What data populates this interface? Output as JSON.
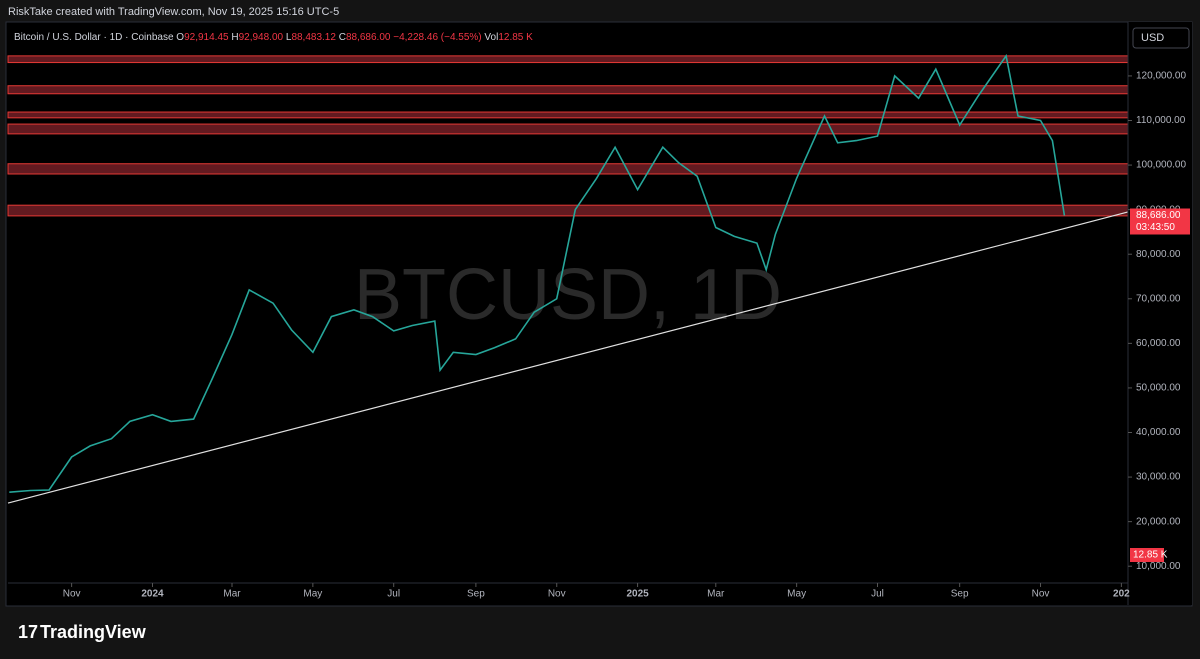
{
  "header": {
    "credit": "RiskTake created with TradingView.com, Nov 19, 2025 15:16 UTC-5"
  },
  "footer": {
    "brand": "TradingView"
  },
  "chart_data": {
    "type": "line",
    "symbol": "Bitcoin / U.S. Dollar · 1D · Coinbase",
    "ohlc": [
      {
        "key": "O",
        "text": "92,914.45"
      },
      {
        "key": "H",
        "text": "92,948.00"
      },
      {
        "key": "L",
        "text": "88,483.12"
      },
      {
        "key": "C",
        "text": "88,686.00"
      }
    ],
    "change": "−4,228.46 (−4.55%)",
    "volume_key": "Vol",
    "volume_text": "12.85 K",
    "watermark": "BTCUSD, 1D",
    "currency_button": "USD",
    "last_price_label": "88,686.00",
    "countdown": "03:43:50",
    "x": [
      "2023-09-15",
      "2023-10-01",
      "2023-10-15",
      "2023-11-01",
      "2023-11-15",
      "2023-12-01",
      "2023-12-15",
      "2024-01-01",
      "2024-01-15",
      "2024-02-01",
      "2024-02-15",
      "2024-03-01",
      "2024-03-14",
      "2024-04-01",
      "2024-04-15",
      "2024-05-01",
      "2024-05-15",
      "2024-06-01",
      "2024-06-15",
      "2024-07-01",
      "2024-07-15",
      "2024-08-01",
      "2024-08-05",
      "2024-08-15",
      "2024-09-01",
      "2024-09-15",
      "2024-10-01",
      "2024-10-15",
      "2024-11-01",
      "2024-11-15",
      "2024-12-01",
      "2024-12-15",
      "2025-01-01",
      "2025-01-20",
      "2025-02-01",
      "2025-02-15",
      "2025-03-01",
      "2025-03-15",
      "2025-04-01",
      "2025-04-08",
      "2025-04-15",
      "2025-05-01",
      "2025-05-22",
      "2025-06-01",
      "2025-06-15",
      "2025-07-01",
      "2025-07-14",
      "2025-08-01",
      "2025-08-14",
      "2025-09-01",
      "2025-09-15",
      "2025-10-06",
      "2025-10-15",
      "2025-11-01",
      "2025-11-10",
      "2025-11-19"
    ],
    "series": [
      {
        "name": "BTCUSD",
        "color": "#26a69a",
        "values": [
          26600,
          27000,
          27100,
          34500,
          37000,
          38600,
          42500,
          44000,
          42500,
          43000,
          52000,
          62000,
          72000,
          69000,
          63000,
          58000,
          66000,
          67500,
          66000,
          62800,
          64000,
          65000,
          54000,
          58000,
          57500,
          59000,
          61000,
          67000,
          70000,
          90000,
          97000,
          104000,
          94500,
          104000,
          100500,
          97500,
          86000,
          84000,
          82500,
          76500,
          84500,
          97000,
          111000,
          105000,
          105500,
          106500,
          120000,
          115000,
          121500,
          109000,
          115500,
          124500,
          111000,
          110000,
          105500,
          88686
        ]
      }
    ],
    "zones": [
      {
        "low": 123000,
        "high": 124500
      },
      {
        "low": 116000,
        "high": 117800
      },
      {
        "low": 110600,
        "high": 111900
      },
      {
        "low": 107000,
        "high": 109200
      },
      {
        "low": 98000,
        "high": 100300
      },
      {
        "low": 88600,
        "high": 91000
      }
    ],
    "zone_color": "#b2303a",
    "trendline": {
      "x": [
        "2023-09-14",
        "2026-01-06"
      ],
      "values": [
        24175,
        89480
      ],
      "color": "#e0e0e0"
    },
    "xlim": [
      "2023-09-14",
      "2026-01-06"
    ],
    "xticks": [
      {
        "value": "2023-11-01",
        "label": "Nov"
      },
      {
        "value": "2024-01-01",
        "label": "2024"
      },
      {
        "value": "2024-03-01",
        "label": "Mar"
      },
      {
        "value": "2024-05-01",
        "label": "May"
      },
      {
        "value": "2024-07-01",
        "label": "Jul"
      },
      {
        "value": "2024-09-01",
        "label": "Sep"
      },
      {
        "value": "2024-11-01",
        "label": "Nov"
      },
      {
        "value": "2025-01-01",
        "label": "2025"
      },
      {
        "value": "2025-03-01",
        "label": "Mar"
      },
      {
        "value": "2025-05-01",
        "label": "May"
      },
      {
        "value": "2025-07-01",
        "label": "Jul"
      },
      {
        "value": "2025-09-01",
        "label": "Sep"
      },
      {
        "value": "2025-11-01",
        "label": "Nov"
      },
      {
        "value": "2026-01-01",
        "label": "202"
      }
    ],
    "ylim": [
      1300,
      132100
    ],
    "yticks": [
      {
        "value": 10000,
        "label": "10,000.00"
      },
      {
        "value": 20000,
        "label": "20,000.00"
      },
      {
        "value": 30000,
        "label": "30,000.00"
      },
      {
        "value": 40000,
        "label": "40,000.00"
      },
      {
        "value": 50000,
        "label": "50,000.00"
      },
      {
        "value": 60000,
        "label": "60,000.00"
      },
      {
        "value": 70000,
        "label": "70,000.00"
      },
      {
        "value": 80000,
        "label": "80,000.00"
      },
      {
        "value": 90000,
        "label": "90,000.00"
      },
      {
        "value": 100000,
        "label": "100,000.00"
      },
      {
        "value": 110000,
        "label": "110,000.00"
      },
      {
        "value": 120000,
        "label": "120,000.00"
      }
    ],
    "grid": false
  }
}
